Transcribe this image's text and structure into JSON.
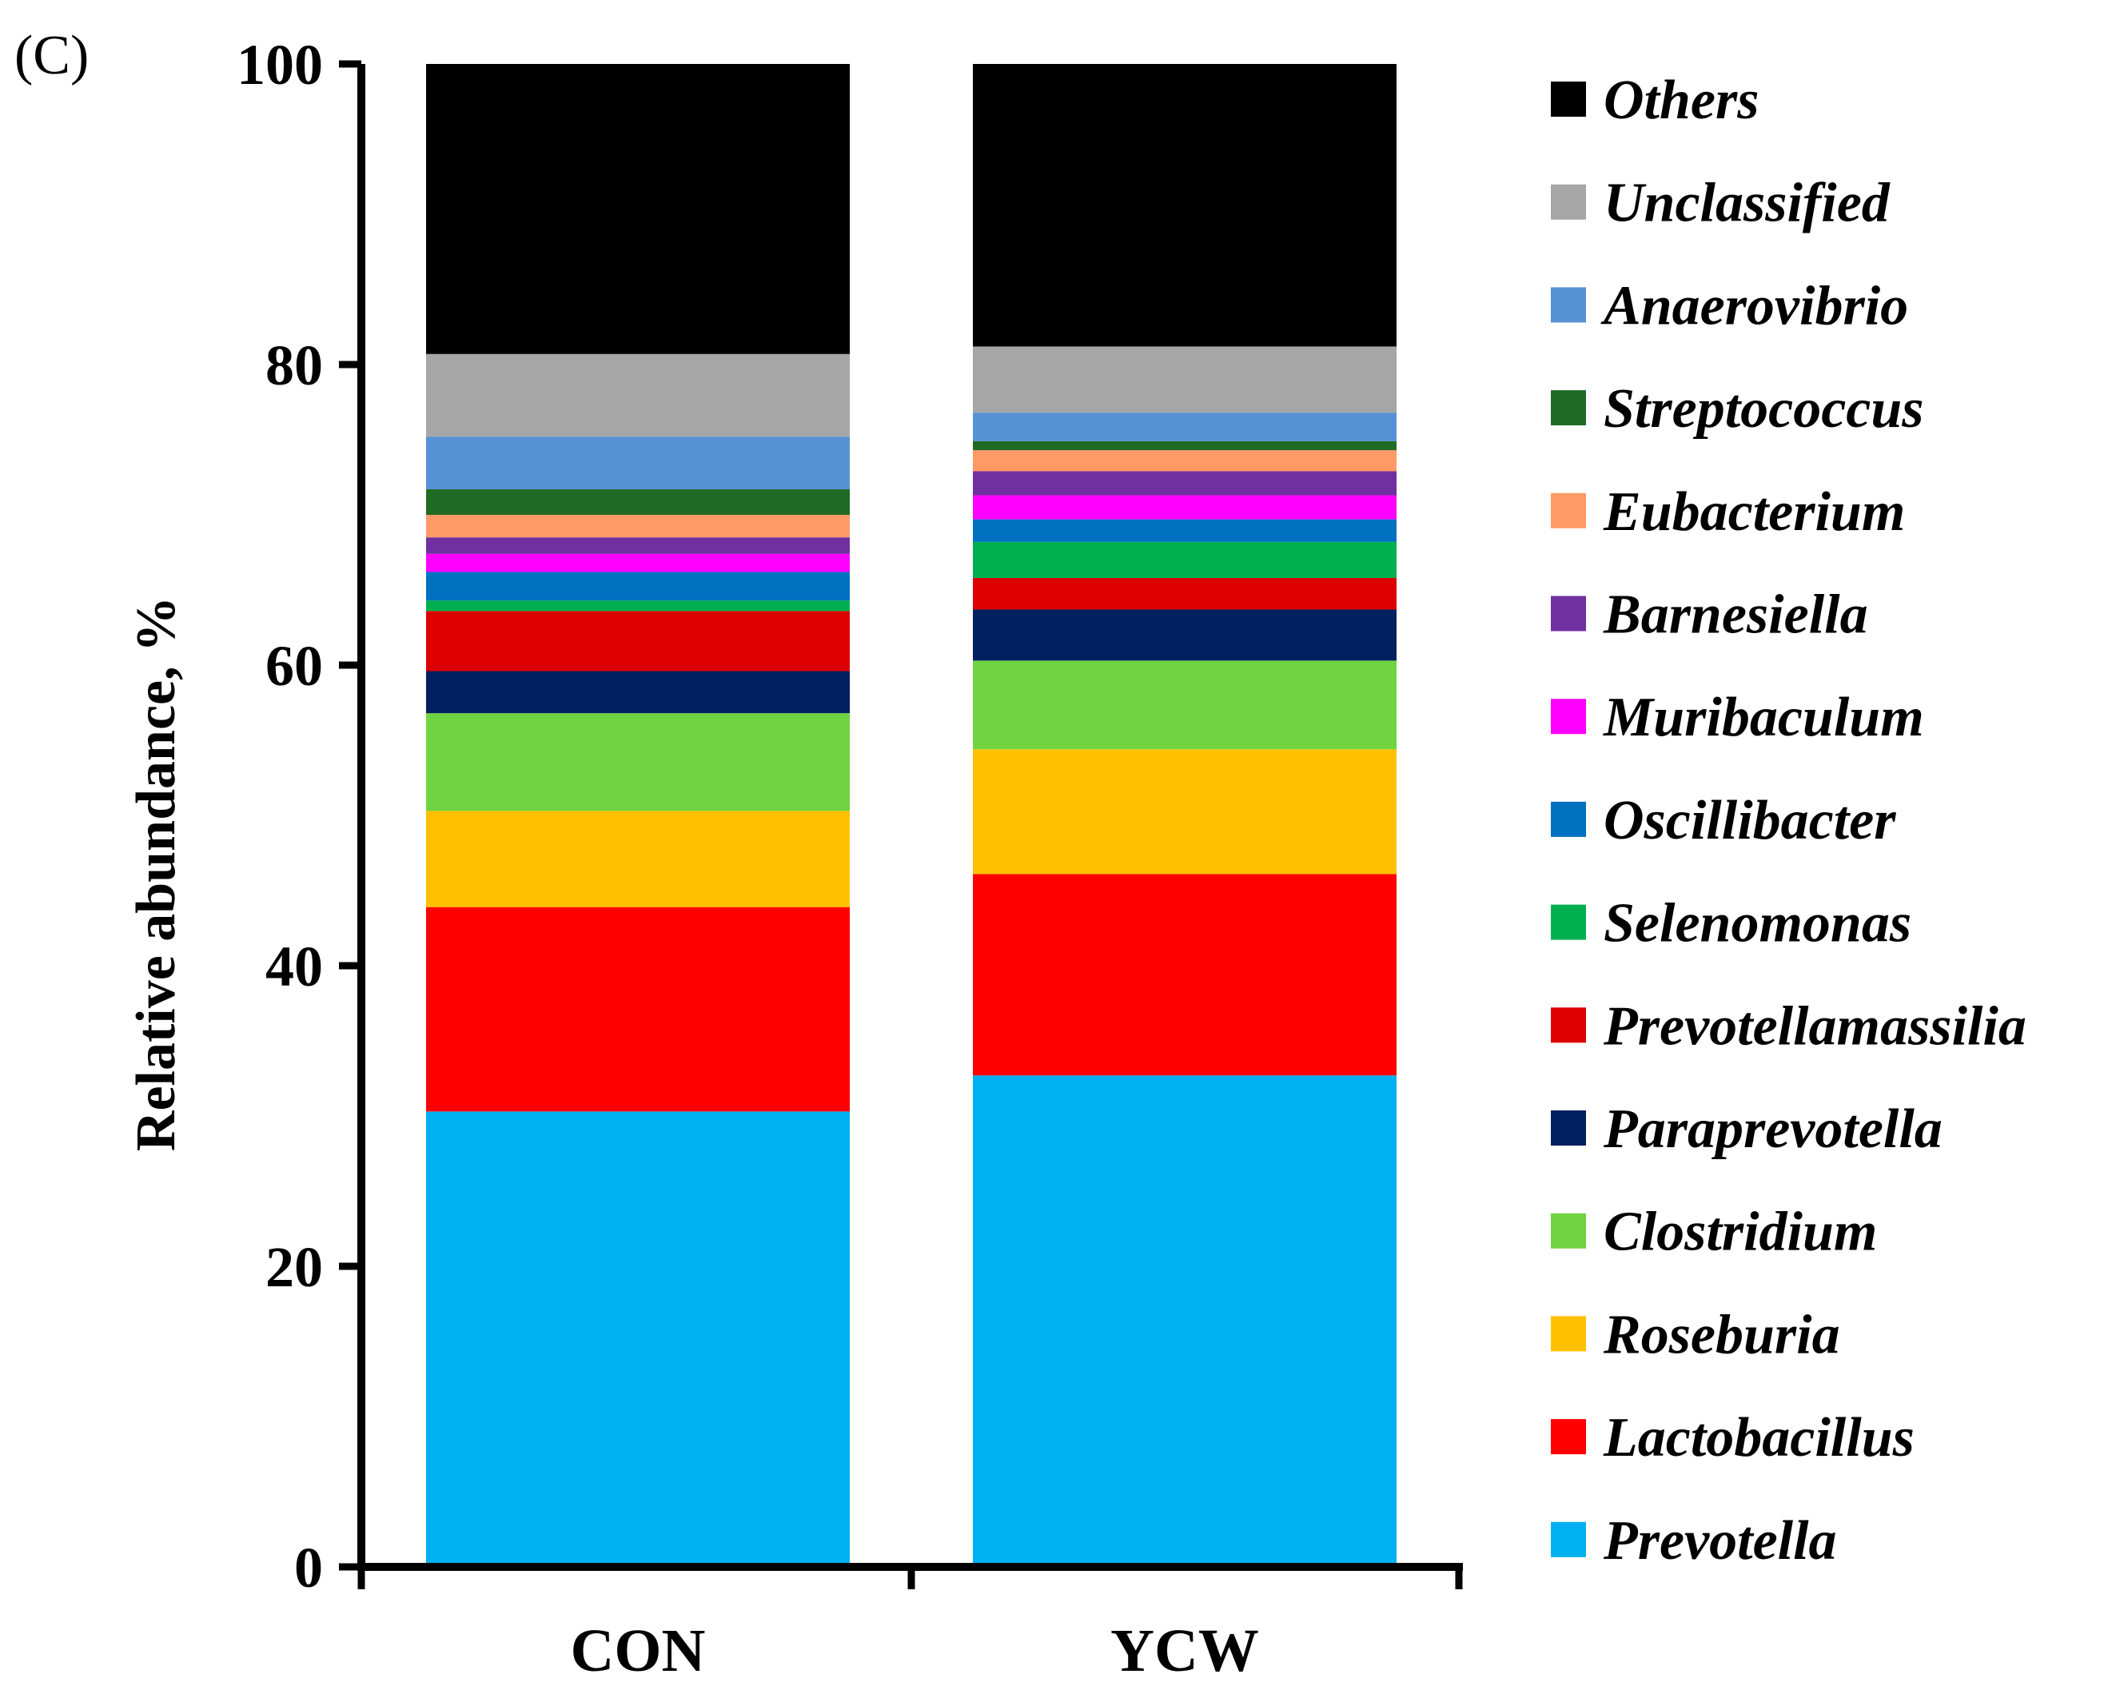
{
  "panel_label": "(C)",
  "chart_data": {
    "type": "bar",
    "stacked": true,
    "title": "",
    "xlabel": "",
    "ylabel": "Relative abundance, %",
    "ylim": [
      0,
      100
    ],
    "yticks": [
      "0",
      "20",
      "40",
      "60",
      "80",
      "100"
    ],
    "categories": [
      "CON",
      "YCW"
    ],
    "legend_position": "right",
    "series": [
      {
        "name": "Prevotella",
        "color": "#00b0f0",
        "values": [
          30.3,
          32.7
        ]
      },
      {
        "name": "Lactobacillus",
        "color": "#ff0000",
        "values": [
          13.6,
          13.4
        ]
      },
      {
        "name": "Roseburia",
        "color": "#ffc000",
        "values": [
          6.4,
          8.3
        ]
      },
      {
        "name": "Clostridium",
        "color": "#6fd43f",
        "values": [
          6.5,
          5.9
        ]
      },
      {
        "name": "Paraprevotella",
        "color": "#002060",
        "values": [
          2.8,
          3.4
        ]
      },
      {
        "name": "Prevotellamassilia",
        "color": "#dd0000",
        "values": [
          4.0,
          2.1
        ]
      },
      {
        "name": "Selenomonas",
        "color": "#00b050",
        "values": [
          0.7,
          2.4
        ]
      },
      {
        "name": "Oscillibacter",
        "color": "#0070c0",
        "values": [
          1.9,
          1.5
        ]
      },
      {
        "name": "Muribaculum",
        "color": "#ff00ff",
        "values": [
          1.2,
          1.6
        ]
      },
      {
        "name": "Barnesiella",
        "color": "#7030a0",
        "values": [
          1.1,
          1.6
        ]
      },
      {
        "name": "Eubacterium",
        "color": "#ff9966",
        "values": [
          1.5,
          1.4
        ]
      },
      {
        "name": "Streptococcus",
        "color": "#1f6b23",
        "values": [
          1.7,
          0.6
        ]
      },
      {
        "name": "Anaerovibrio",
        "color": "#5591d4",
        "values": [
          3.5,
          1.9
        ]
      },
      {
        "name": "Unclassified",
        "color": "#a6a6a6",
        "values": [
          5.5,
          4.4
        ]
      },
      {
        "name": "Others",
        "color": "#000000",
        "values": [
          19.3,
          18.8
        ]
      }
    ]
  }
}
